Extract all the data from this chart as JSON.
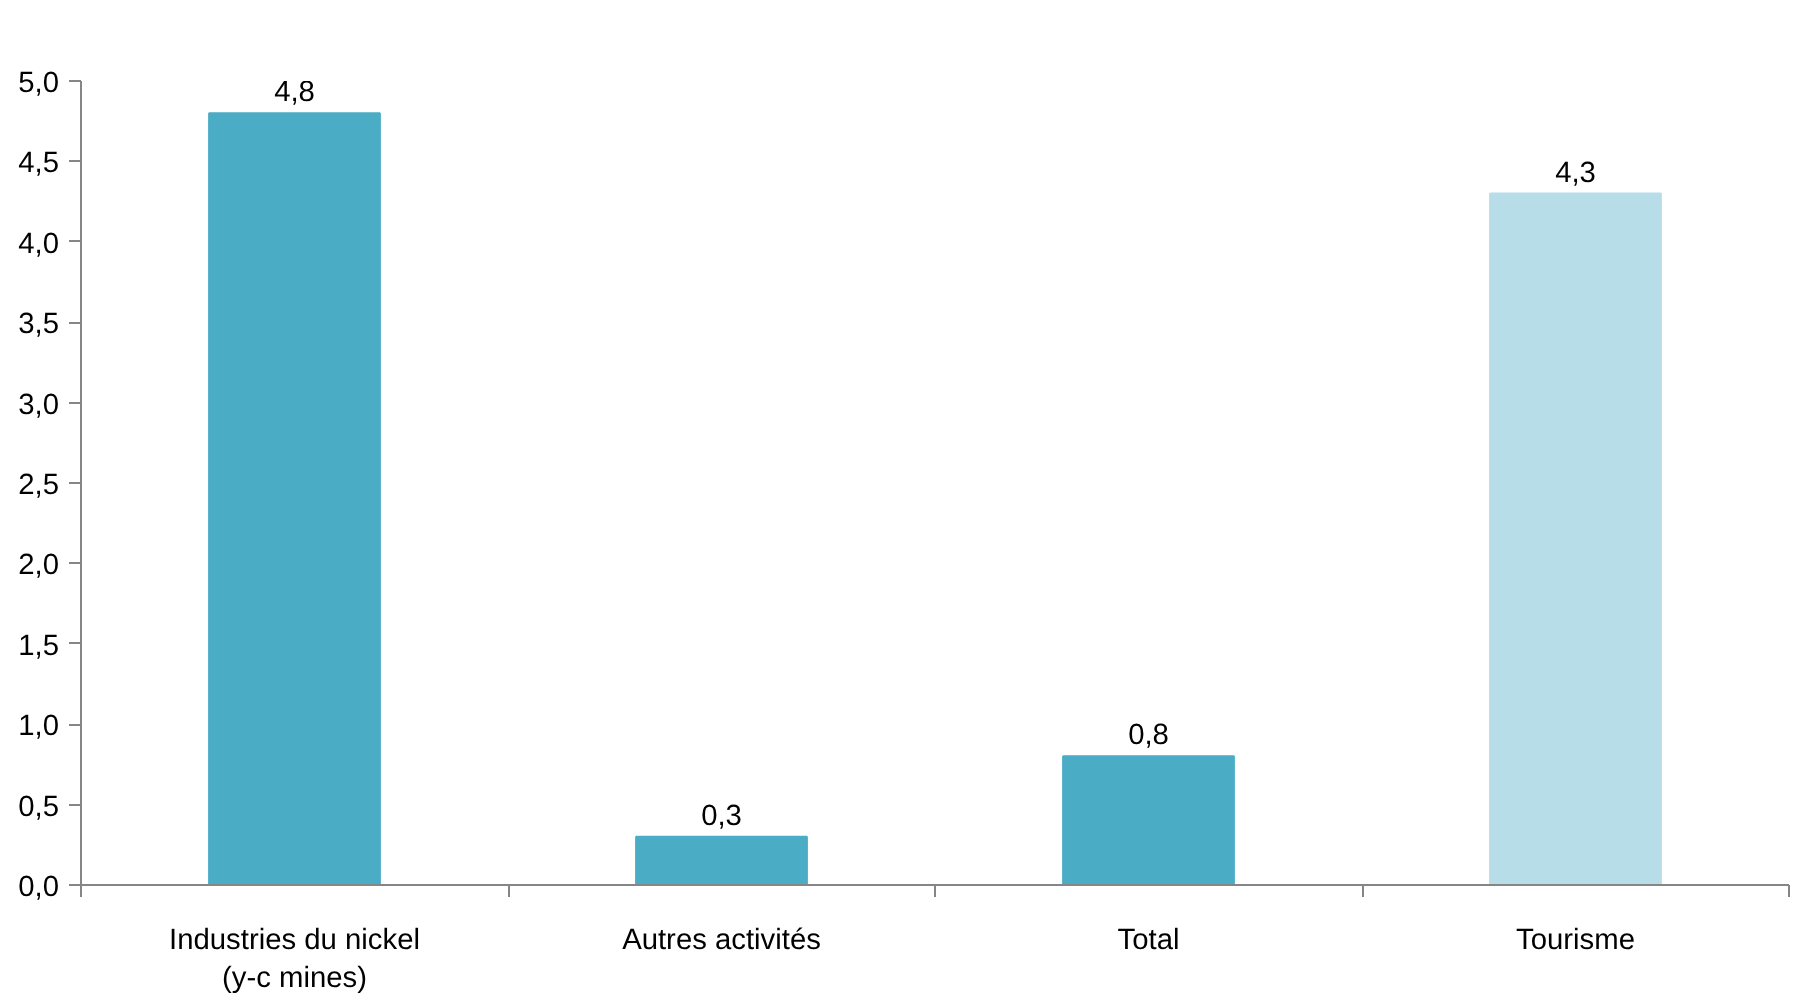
{
  "chart_data": {
    "type": "bar",
    "categories": [
      "Industries du nickel\n(y-c mines)",
      "Autres activités",
      "Total",
      "Tourisme"
    ],
    "values": [
      4.8,
      0.3,
      0.8,
      4.3
    ],
    "colors": [
      "#4bacc6",
      "#4bacc6",
      "#4bacc6",
      "#b7dee8"
    ],
    "value_labels": [
      "4,8",
      "0,3",
      "0,8",
      "4,3"
    ],
    "ylim": [
      0,
      5
    ],
    "yticks": [
      {
        "value": 0,
        "label": "0,0"
      },
      {
        "value": 0.5,
        "label": "0,5"
      },
      {
        "value": 1,
        "label": "1,0"
      },
      {
        "value": 1.5,
        "label": "1,5"
      },
      {
        "value": 2,
        "label": "2,0"
      },
      {
        "value": 2.5,
        "label": "2,5"
      },
      {
        "value": 3,
        "label": "3,0"
      },
      {
        "value": 3.5,
        "label": "3,5"
      },
      {
        "value": 4,
        "label": "4,0"
      },
      {
        "value": 4.5,
        "label": "4,5"
      },
      {
        "value": 5,
        "label": "5,0"
      }
    ],
    "grid": false
  }
}
